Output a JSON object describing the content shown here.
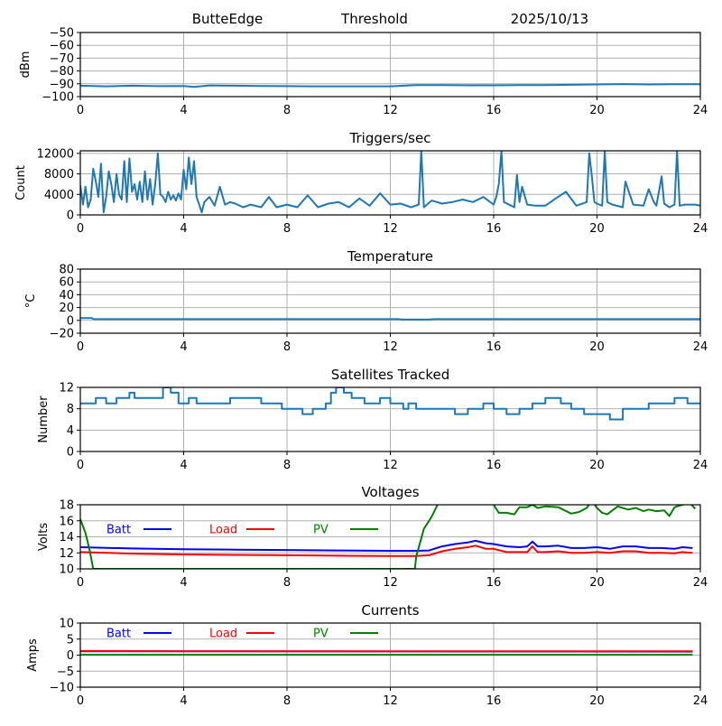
{
  "header": {
    "station": "ButteEdge",
    "mode": "Threshold",
    "date": "2025/10/13"
  },
  "colors": {
    "series_default": "#1f77b4",
    "batt": "#0000ff",
    "load": "#ff0000",
    "pv": "#008000",
    "grid": "#b0b0b0"
  },
  "chart_data": [
    {
      "type": "line",
      "title": "",
      "xlabel": "",
      "ylabel": "dBm",
      "xlim": [
        0,
        24
      ],
      "ylim": [
        -100,
        -50
      ],
      "xticks": [
        "0",
        "4",
        "8",
        "12",
        "16",
        "20",
        "24"
      ],
      "yticks": [
        "−50",
        "−60",
        "−70",
        "−80",
        "−90",
        "−100"
      ],
      "ytick_values": [
        -50,
        -60,
        -70,
        -80,
        -90,
        -100
      ],
      "grid": true,
      "series": [
        {
          "name": "threshold",
          "color": "#1f77b4",
          "x": [
            0,
            1,
            2,
            3,
            4,
            4.4,
            5,
            6,
            7,
            8,
            9,
            10,
            11,
            12,
            13,
            14,
            15,
            16,
            17,
            18,
            19,
            20,
            21,
            22,
            23,
            24
          ],
          "y": [
            -91.5,
            -92,
            -91.5,
            -91.8,
            -91.7,
            -92.5,
            -91.3,
            -91.5,
            -91.7,
            -91.8,
            -92,
            -92,
            -92,
            -92,
            -91,
            -91,
            -91.2,
            -91.2,
            -91,
            -91,
            -90.8,
            -90.5,
            -90.2,
            -90.5,
            -90.3,
            -90.3
          ]
        }
      ]
    },
    {
      "type": "line",
      "title": "Triggers/sec",
      "xlabel": "",
      "ylabel": "Count",
      "xlim": [
        0,
        24
      ],
      "ylim": [
        0,
        12500
      ],
      "xticks": [
        "0",
        "4",
        "8",
        "12",
        "16",
        "20",
        "24"
      ],
      "yticks": [
        "0",
        "4000",
        "8000",
        "12000"
      ],
      "ytick_values": [
        0,
        4000,
        8000,
        12000
      ],
      "grid": true,
      "series": [
        {
          "name": "triggers",
          "color": "#1f77b4",
          "x": [
            0,
            0.1,
            0.2,
            0.3,
            0.4,
            0.5,
            0.6,
            0.7,
            0.8,
            0.9,
            1.0,
            1.1,
            1.2,
            1.3,
            1.4,
            1.5,
            1.6,
            1.7,
            1.8,
            1.9,
            2.0,
            2.1,
            2.2,
            2.3,
            2.4,
            2.5,
            2.6,
            2.7,
            2.8,
            2.9,
            3.0,
            3.1,
            3.2,
            3.3,
            3.4,
            3.5,
            3.6,
            3.7,
            3.8,
            3.9,
            4.0,
            4.1,
            4.2,
            4.3,
            4.4,
            4.5,
            4.6,
            4.7,
            4.8,
            5.0,
            5.2,
            5.4,
            5.6,
            5.8,
            6.0,
            6.3,
            6.6,
            7.0,
            7.3,
            7.6,
            8.0,
            8.4,
            8.8,
            9.2,
            9.6,
            10.0,
            10.4,
            10.8,
            11.2,
            11.6,
            12.0,
            12.4,
            12.8,
            13.1,
            13.2,
            13.3,
            13.6,
            14.0,
            14.4,
            14.8,
            15.2,
            15.6,
            16.0,
            16.1,
            16.2,
            16.3,
            16.4,
            16.8,
            16.9,
            17.0,
            17.1,
            17.3,
            17.6,
            18.0,
            18.4,
            18.8,
            19.2,
            19.6,
            19.7,
            19.8,
            19.9,
            20.0,
            20.2,
            20.3,
            20.4,
            20.6,
            21.0,
            21.1,
            21.4,
            21.8,
            22.0,
            22.2,
            22.3,
            22.5,
            22.6,
            22.8,
            23.0,
            23.1,
            23.2,
            23.4,
            23.8,
            24.0
          ],
          "y": [
            5800,
            2000,
            5500,
            1500,
            3000,
            9000,
            6500,
            3500,
            10000,
            500,
            3500,
            8500,
            6000,
            2500,
            8000,
            4000,
            3000,
            10500,
            2500,
            11000,
            4500,
            6000,
            3000,
            6500,
            2500,
            8500,
            3000,
            7000,
            2000,
            6000,
            12000,
            4000,
            3500,
            2500,
            4500,
            3000,
            3800,
            2800,
            4200,
            3000,
            8800,
            5000,
            11200,
            6000,
            10500,
            3500,
            2000,
            500,
            2500,
            3500,
            1800,
            5500,
            2000,
            2500,
            2200,
            1500,
            2000,
            1500,
            3500,
            1500,
            2000,
            1500,
            3800,
            1500,
            2200,
            2500,
            1500,
            3200,
            1800,
            4200,
            2000,
            2200,
            1500,
            2000,
            12500,
            1500,
            2800,
            2200,
            2500,
            3000,
            2500,
            3500,
            2000,
            3500,
            6000,
            12500,
            2500,
            1500,
            7800,
            2500,
            5500,
            2000,
            1800,
            1800,
            3200,
            4500,
            1800,
            2500,
            12000,
            7500,
            2500,
            2200,
            1800,
            12500,
            2500,
            2000,
            1500,
            6500,
            2000,
            1800,
            5000,
            2500,
            1800,
            7500,
            2200,
            1500,
            2000,
            12500,
            1800,
            2000,
            2000,
            1800
          ]
        }
      ]
    },
    {
      "type": "line",
      "title": "Temperature",
      "xlabel": "",
      "ylabel": "°C",
      "xlim": [
        0,
        24
      ],
      "ylim": [
        -20,
        80
      ],
      "xticks": [
        "0",
        "4",
        "8",
        "12",
        "16",
        "20",
        "24"
      ],
      "yticks": [
        "80",
        "60",
        "40",
        "20",
        "0",
        "−20"
      ],
      "ytick_values": [
        80,
        60,
        40,
        20,
        0,
        -20
      ],
      "grid": true,
      "series": [
        {
          "name": "temperature",
          "color": "#1f77b4",
          "x": [
            0,
            0.45,
            0.5,
            12.3,
            12.5,
            13.5,
            13.7,
            24
          ],
          "y": [
            3.5,
            3.5,
            2,
            2,
            1.2,
            1.2,
            2,
            2
          ]
        }
      ]
    },
    {
      "type": "line",
      "title": "Satellites Tracked",
      "xlabel": "",
      "ylabel": "Number",
      "xlim": [
        0,
        24
      ],
      "ylim": [
        0,
        12
      ],
      "xticks": [
        "0",
        "4",
        "8",
        "12",
        "16",
        "20",
        "24"
      ],
      "yticks": [
        "12",
        "8",
        "4",
        "0"
      ],
      "ytick_values": [
        12,
        8,
        4,
        0
      ],
      "grid": true,
      "series": [
        {
          "name": "satellites",
          "color": "#1f77b4",
          "step": true,
          "x": [
            0,
            0.6,
            1.0,
            1.4,
            1.9,
            2.1,
            3.0,
            3.2,
            3.5,
            3.8,
            4.2,
            4.5,
            4.7,
            5.3,
            5.8,
            6.2,
            6.8,
            7.0,
            7.2,
            7.8,
            8.6,
            9.0,
            9.3,
            9.5,
            9.7,
            9.9,
            10.2,
            10.5,
            11.0,
            11.4,
            11.6,
            12.0,
            12.2,
            12.5,
            12.7,
            13.0,
            14.0,
            14.5,
            15.0,
            15.6,
            16.0,
            16.5,
            17.0,
            17.5,
            18.0,
            18.6,
            19.0,
            19.5,
            19.8,
            20.5,
            21.0,
            21.5,
            22.0,
            22.1,
            23.0,
            23.5,
            24.0
          ],
          "y": [
            9,
            10,
            9,
            10,
            11,
            10,
            10,
            12,
            11,
            9,
            10,
            9,
            9,
            9,
            10,
            10,
            10,
            9,
            9,
            8,
            7,
            8,
            8,
            9,
            11,
            12,
            11,
            10,
            9,
            9,
            10,
            9,
            9,
            8,
            9,
            8,
            8,
            7,
            8,
            9,
            8,
            7,
            8,
            9,
            10,
            9,
            8,
            7,
            7,
            6,
            8,
            8,
            9,
            9,
            10,
            9,
            9
          ]
        }
      ]
    },
    {
      "type": "line",
      "title": "Voltages",
      "xlabel": "",
      "ylabel": "Volts",
      "xlim": [
        0,
        24
      ],
      "ylim": [
        10,
        18
      ],
      "xticks": [
        "0",
        "4",
        "8",
        "12",
        "16",
        "20",
        "24"
      ],
      "yticks": [
        "18",
        "16",
        "14",
        "12",
        "10"
      ],
      "ytick_values": [
        18,
        16,
        14,
        12,
        10
      ],
      "grid": true,
      "legend": {
        "placement": "top-left-inline",
        "entries": [
          "Batt",
          "Load",
          "PV"
        ]
      },
      "series": [
        {
          "name": "Batt",
          "color": "#0000ff",
          "x": [
            0,
            2,
            4,
            6,
            8,
            10,
            12,
            13,
            13.5,
            14,
            14.5,
            15,
            15.3,
            15.7,
            16,
            16.5,
            17,
            17.3,
            17.5,
            17.7,
            18,
            18.5,
            19,
            19.5,
            20,
            20.5,
            21,
            21.5,
            22,
            22.5,
            23,
            23.3,
            23.7
          ],
          "y": [
            12.7,
            12.55,
            12.45,
            12.4,
            12.35,
            12.3,
            12.25,
            12.25,
            12.3,
            12.8,
            13.1,
            13.3,
            13.5,
            13.2,
            13.1,
            12.8,
            12.7,
            12.8,
            13.4,
            12.8,
            12.8,
            12.9,
            12.6,
            12.6,
            12.7,
            12.5,
            12.8,
            12.8,
            12.6,
            12.6,
            12.5,
            12.7,
            12.6
          ]
        },
        {
          "name": "Load",
          "color": "#ff0000",
          "x": [
            0,
            2,
            4,
            6,
            8,
            10,
            12,
            13,
            13.5,
            14,
            14.5,
            15,
            15.3,
            15.7,
            16,
            16.5,
            17,
            17.3,
            17.5,
            17.7,
            18,
            18.5,
            19,
            19.5,
            20,
            20.5,
            21,
            21.5,
            22,
            22.5,
            23,
            23.3,
            23.7
          ],
          "y": [
            12.1,
            11.9,
            11.8,
            11.75,
            11.7,
            11.65,
            11.6,
            11.6,
            11.7,
            12.2,
            12.5,
            12.7,
            12.9,
            12.5,
            12.5,
            12.1,
            12.1,
            12.1,
            12.8,
            12.1,
            12.1,
            12.2,
            12.0,
            12.0,
            12.1,
            12.0,
            12.2,
            12.2,
            12.0,
            12.0,
            11.95,
            12.1,
            12.0
          ]
        },
        {
          "name": "PV",
          "color": "#008000",
          "x": [
            0,
            0.2,
            0.35,
            0.5,
            12.95,
            13.0,
            13.3,
            13.6,
            13.9,
            15.8,
            16.0,
            16.2,
            16.5,
            16.8,
            17.0,
            17.3,
            17.5,
            17.7,
            18.0,
            18.5,
            19.0,
            19.3,
            19.6,
            19.8,
            20.0,
            20.2,
            20.4,
            20.8,
            21.2,
            21.5,
            21.8,
            22.0,
            22.3,
            22.6,
            22.8,
            23.0,
            23.3,
            23.6,
            23.8
          ],
          "y": [
            16.2,
            14.5,
            12.5,
            10.0,
            10.0,
            11.5,
            15.0,
            16.5,
            18.5,
            18.5,
            18.0,
            17.0,
            17.0,
            16.8,
            17.7,
            17.7,
            18.0,
            17.6,
            17.8,
            17.7,
            16.9,
            17.1,
            17.6,
            18.5,
            17.6,
            17.0,
            16.8,
            17.8,
            17.4,
            17.6,
            17.2,
            17.4,
            17.2,
            17.3,
            16.6,
            17.7,
            18.0,
            18.2,
            17.5
          ]
        }
      ]
    },
    {
      "type": "line",
      "title": "Currents",
      "xlabel": "",
      "ylabel": "Amps",
      "xlim": [
        0,
        24
      ],
      "ylim": [
        -10,
        10
      ],
      "xticks": [
        "0",
        "4",
        "8",
        "12",
        "16",
        "20",
        "24"
      ],
      "yticks": [
        "10",
        "5",
        "0",
        "−5",
        "−10"
      ],
      "ytick_values": [
        10,
        5,
        0,
        -5,
        -10
      ],
      "grid": true,
      "legend": {
        "placement": "top-left-inline",
        "entries": [
          "Batt",
          "Load",
          "PV"
        ]
      },
      "series": [
        {
          "name": "Batt",
          "color": "#0000ff",
          "x": [
            0,
            23.7
          ],
          "y": [
            1.2,
            1.1
          ]
        },
        {
          "name": "Load",
          "color": "#ff0000",
          "x": [
            0,
            4,
            8,
            12,
            16,
            20,
            23.7
          ],
          "y": [
            1.3,
            1.2,
            1.2,
            1.2,
            1.2,
            1.2,
            1.2
          ]
        },
        {
          "name": "PV",
          "color": "#008000",
          "x": [
            0,
            23.7
          ],
          "y": [
            0.1,
            0.1
          ]
        }
      ]
    }
  ]
}
